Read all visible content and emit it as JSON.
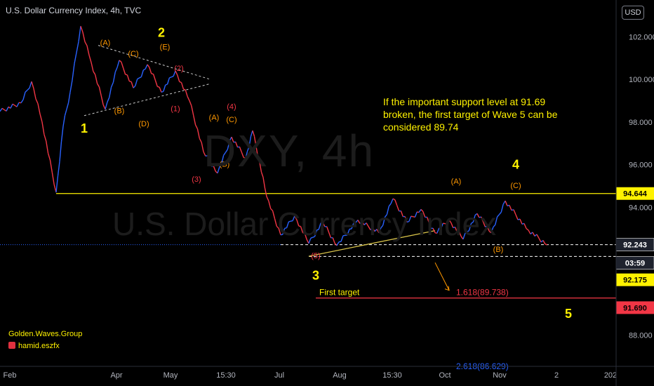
{
  "header": {
    "title": "U.S. Dollar Currency Index, 4h, TVC",
    "currency_button": "USD"
  },
  "watermark": {
    "line1": "DXY, 4h",
    "line2": "U.S. Dollar Currency Index"
  },
  "annotation": {
    "text": "If the important support level at 91.69 broken, the first target of Wave 5 can be considered 89.74"
  },
  "branding": {
    "group": "Golden.Waves.Group",
    "author": "hamid.eszfx"
  },
  "colors": {
    "bg": "#000000",
    "up": "#2962ff",
    "down": "#f23645",
    "yellow": "#fff200",
    "label_orange": "#ff9800",
    "label_red": "#f23645"
  },
  "chart_data": {
    "type": "line",
    "ylim": [
      86.2,
      103.4
    ],
    "y_ticks": [
      "102.000",
      "100.000",
      "98.000",
      "96.000",
      "94.000",
      "88.000"
    ],
    "x_ticks": [
      "Feb",
      "Apr",
      "May",
      "15:30",
      "Jul",
      "Aug",
      "15:30",
      "Oct",
      "Nov",
      "2",
      "202"
    ],
    "series": [
      {
        "x": [
          0,
          6,
          9,
          12,
          16,
          18,
          20,
          23,
          26,
          30,
          34,
          38,
          42,
          46,
          50,
          54,
          58,
          62,
          66,
          70,
          72,
          74,
          76,
          80,
          84,
          88,
          92,
          96,
          102,
          108,
          112,
          116,
          120,
          124,
          128,
          132,
          136,
          140,
          144,
          150,
          156
        ],
        "y": [
          98.5,
          98.9,
          99.9,
          98.0,
          94.7,
          97.8,
          99.4,
          102.5,
          100.8,
          98.6,
          100.9,
          99.6,
          100.7,
          99.4,
          100.4,
          99.0,
          96.6,
          95.6,
          97.3,
          96.3,
          97.6,
          96.1,
          94.5,
          92.7,
          93.6,
          92.3,
          93.3,
          92.2,
          93.4,
          92.8,
          94.4,
          93.3,
          93.9,
          92.8,
          93.4,
          92.5,
          93.7,
          92.8,
          94.3,
          93.0,
          92.24
        ]
      }
    ],
    "levels": [
      {
        "label": "94.644",
        "value": 94.644
      },
      {
        "label": "92.243",
        "value": 92.243
      },
      {
        "label": "03:59",
        "value": 91.95
      },
      {
        "label": "92.175",
        "value": 92.175
      },
      {
        "label": "91.690",
        "value": 91.69
      }
    ],
    "fib_labels": [
      "1.618(89.738)",
      "2.618(86.629)"
    ],
    "target_label": "First target",
    "wave_labels": [
      {
        "t": "1",
        "x": 24,
        "y": 97.5,
        "c": "yellow"
      },
      {
        "t": "2",
        "x": 46,
        "y": 102.0,
        "c": "yellow"
      },
      {
        "t": "3",
        "x": 90,
        "y": 90.6,
        "c": "yellow"
      },
      {
        "t": "4",
        "x": 147,
        "y": 95.8,
        "c": "yellow"
      },
      {
        "t": "5",
        "x": 162,
        "y": 88.8,
        "c": "yellow"
      },
      {
        "t": "(A)",
        "x": 30,
        "y": 101.6,
        "c": "orange"
      },
      {
        "t": "(B)",
        "x": 34,
        "y": 98.4,
        "c": "orange"
      },
      {
        "t": "(C)",
        "x": 38,
        "y": 101.1,
        "c": "orange"
      },
      {
        "t": "(D)",
        "x": 41,
        "y": 97.8,
        "c": "orange"
      },
      {
        "t": "(E)",
        "x": 47,
        "y": 101.4,
        "c": "orange"
      },
      {
        "t": "(1)",
        "x": 50,
        "y": 98.5,
        "c": "red"
      },
      {
        "t": "(2)",
        "x": 51,
        "y": 100.4,
        "c": "red"
      },
      {
        "t": "(3)",
        "x": 56,
        "y": 95.2,
        "c": "red"
      },
      {
        "t": "(4)",
        "x": 66,
        "y": 98.6,
        "c": "red"
      },
      {
        "t": "(A)",
        "x": 61,
        "y": 98.1,
        "c": "orange"
      },
      {
        "t": "(B)",
        "x": 64,
        "y": 95.9,
        "c": "orange"
      },
      {
        "t": "(C)",
        "x": 66,
        "y": 98.0,
        "c": "orange"
      },
      {
        "t": "(5)",
        "x": 90,
        "y": 91.6,
        "c": "red"
      },
      {
        "t": "(A)",
        "x": 130,
        "y": 95.1,
        "c": "orange"
      },
      {
        "t": "(B)",
        "x": 142,
        "y": 91.9,
        "c": "orange"
      },
      {
        "t": "(C)",
        "x": 147,
        "y": 94.9,
        "c": "orange"
      }
    ]
  }
}
